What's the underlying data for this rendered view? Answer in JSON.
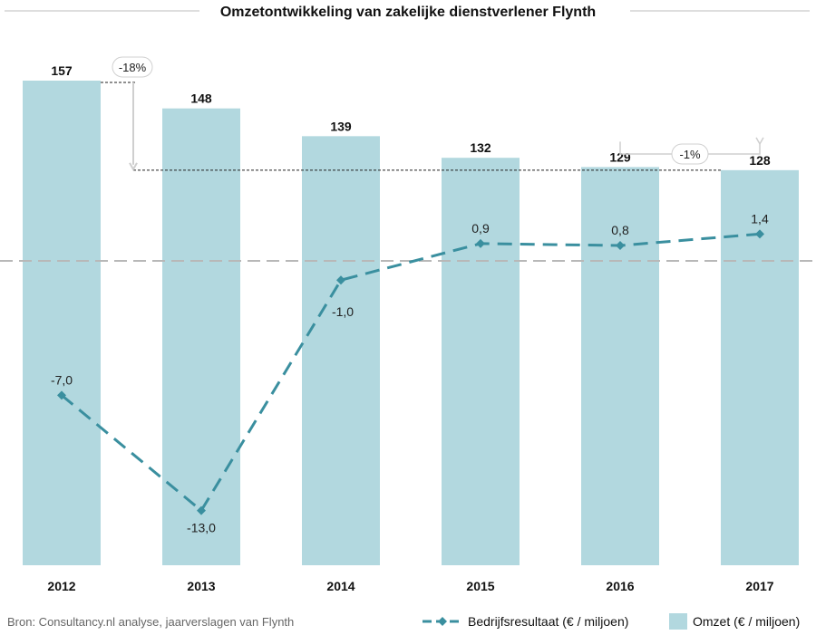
{
  "chart_data": {
    "type": "bar",
    "title": "Omzetontwikkeling van zakelijke dienstverlener Flynth",
    "categories": [
      "2012",
      "2013",
      "2014",
      "2015",
      "2016",
      "2017"
    ],
    "series": [
      {
        "name": "Omzet (€ / miljoen)",
        "type": "bar",
        "values": [
          157,
          148,
          139,
          132,
          129,
          128
        ],
        "labels": [
          "157",
          "148",
          "139",
          "132",
          "129",
          "128"
        ],
        "color": "#b2d8df"
      },
      {
        "name": "Bedrijfsresultaat (€ / miljoen)",
        "type": "line",
        "style": "dashed",
        "values": [
          -7.0,
          -13.0,
          -1.0,
          0.9,
          0.8,
          1.4
        ],
        "labels": [
          "-7,0",
          "-13,0",
          "-1,0",
          "0,9",
          "0,8",
          "1,4"
        ],
        "color": "#3a8f9f"
      }
    ],
    "annotations": [
      {
        "label": "-18%",
        "from": "2012",
        "to": "2017"
      },
      {
        "label": "-1%",
        "from": "2016",
        "to": "2017"
      }
    ],
    "baseline": 0,
    "grid": false,
    "legend": "bottom-right",
    "source": "Bron: Consultancy.nl analyse, jaarverslagen van Flynth"
  },
  "colors": {
    "bar": "#b2d8df",
    "line": "#3a8f9f",
    "zero_line": "#b8b8b8",
    "annotation": "#cfcfcf"
  }
}
